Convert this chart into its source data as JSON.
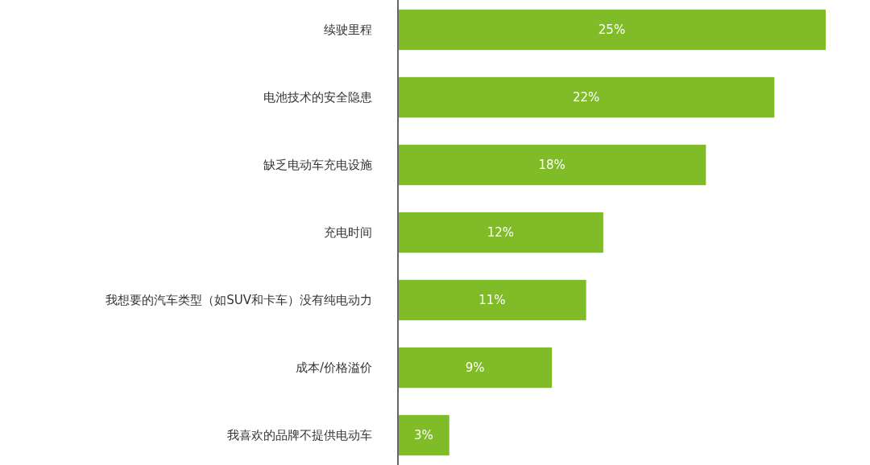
{
  "chart_data": {
    "type": "bar",
    "orientation": "horizontal",
    "categories": [
      "续驶里程",
      "电池技术的安全隐患",
      "缺乏电动车充电设施",
      "充电时间",
      "我想要的汽车类型（如SUV和卡车）没有纯电动力",
      "成本/价格溢价",
      "我喜欢的品牌不提供电动车"
    ],
    "values": [
      25,
      22,
      18,
      12,
      11,
      9,
      3
    ],
    "value_labels": [
      "25%",
      "22%",
      "18%",
      "12%",
      "11%",
      "9%",
      "3%"
    ],
    "color": "#80bc28"
  }
}
